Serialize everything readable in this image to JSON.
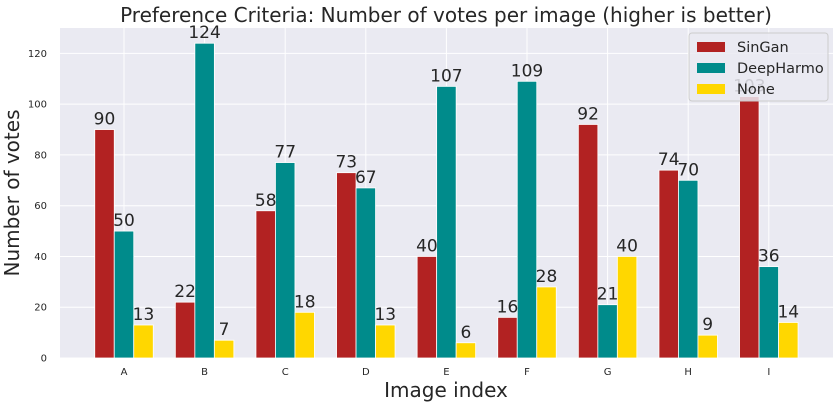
{
  "chart_data": {
    "type": "bar",
    "title": "Preference Criteria: Number of votes per image (higher is better)",
    "xlabel": "Image index",
    "ylabel": "Number of votes",
    "categories": [
      "A",
      "B",
      "C",
      "D",
      "E",
      "F",
      "G",
      "H",
      "I"
    ],
    "series": [
      {
        "name": "SinGan",
        "color": "#b22222",
        "values": [
          90,
          22,
          58,
          73,
          40,
          16,
          92,
          74,
          103
        ]
      },
      {
        "name": "DeepHarmo",
        "color": "#008b8b",
        "values": [
          50,
          124,
          77,
          67,
          107,
          109,
          21,
          70,
          36
        ]
      },
      {
        "name": "None",
        "color": "#ffd700",
        "values": [
          13,
          7,
          18,
          13,
          6,
          28,
          40,
          9,
          14
        ]
      }
    ],
    "ylim": [
      0,
      130
    ],
    "yticks": [
      0,
      20,
      40,
      60,
      80,
      100,
      120
    ],
    "grid": true,
    "legend_position": "top-right",
    "background_color": "#eaeaf2",
    "grid_color": "#ffffff"
  }
}
